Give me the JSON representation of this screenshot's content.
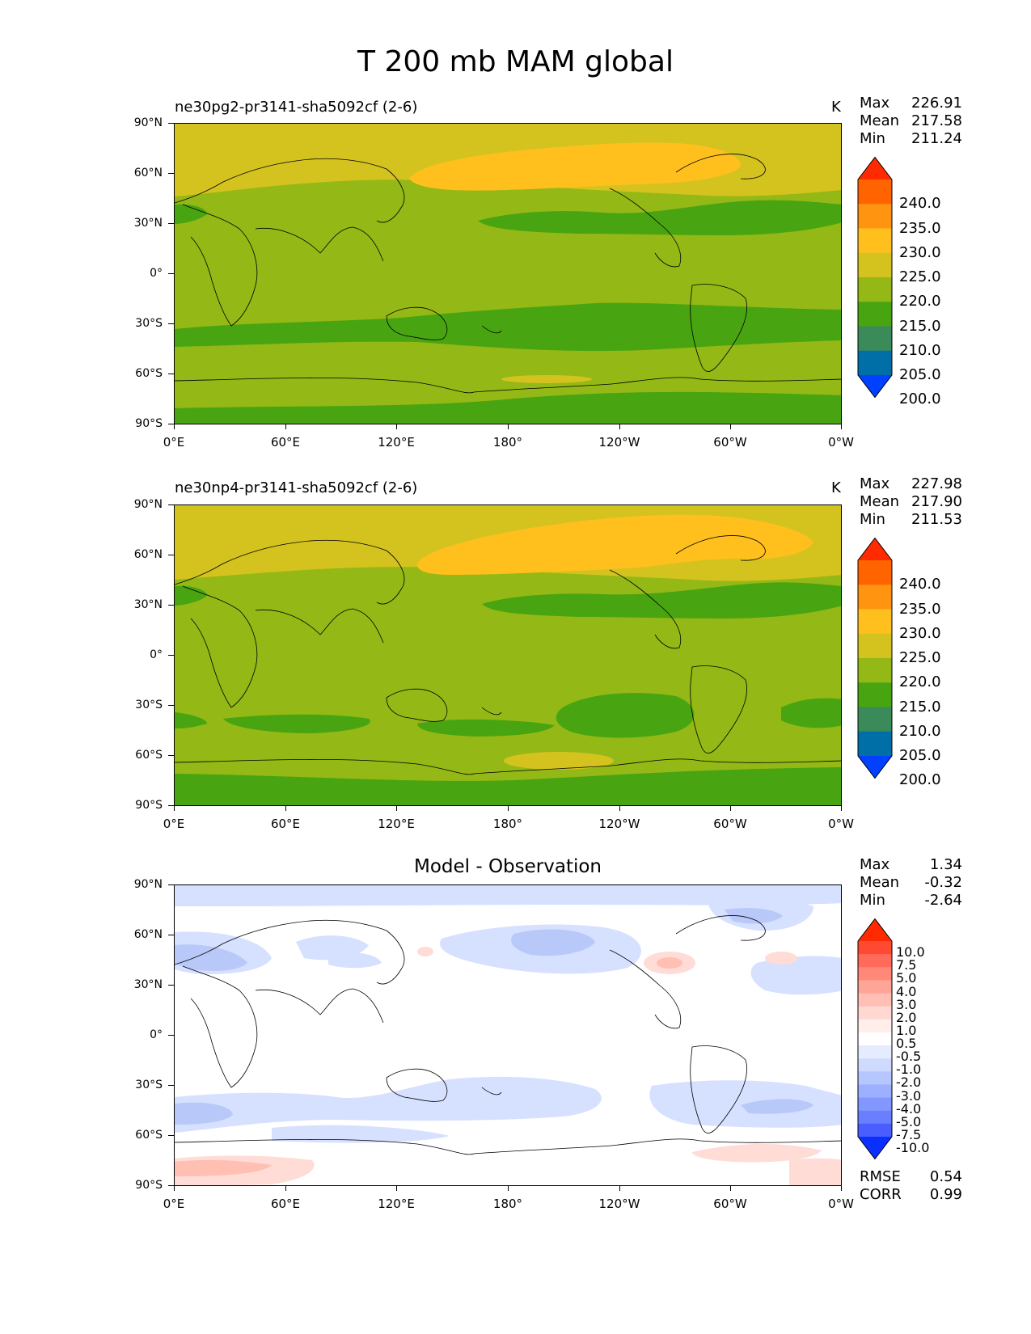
{
  "title": "T 200 mb MAM global",
  "lat_labels": [
    "90°N",
    "60°N",
    "30°N",
    "0°",
    "30°S",
    "60°S",
    "90°S"
  ],
  "lon_labels": [
    "0°E",
    "60°E",
    "120°E",
    "180°",
    "120°W",
    "60°W",
    "0°W"
  ],
  "panels": [
    {
      "title": "ne30pg2-pr3141-sha5092cf (2-6)",
      "units": "K",
      "stats": {
        "max_label": "Max",
        "max": "226.91",
        "mean_label": "Mean",
        "mean": "217.58",
        "min_label": "Min",
        "min": "211.24"
      },
      "colorbar": {
        "labels": [
          "240.0",
          "235.0",
          "230.0",
          "225.0",
          "220.0",
          "215.0",
          "210.0",
          "205.0",
          "200.0"
        ],
        "colors": [
          "#ff2a00",
          "#ff6400",
          "#ff9410",
          "#ffc01e",
          "#d4c31f",
          "#94b815",
          "#48a511",
          "#3a8a5a",
          "#006fa8",
          "#0040ff"
        ]
      }
    },
    {
      "title": "ne30np4-pr3141-sha5092cf (2-6)",
      "units": "K",
      "stats": {
        "max_label": "Max",
        "max": "227.98",
        "mean_label": "Mean",
        "mean": "217.90",
        "min_label": "Min",
        "min": "211.53"
      },
      "colorbar": {
        "labels": [
          "240.0",
          "235.0",
          "230.0",
          "225.0",
          "220.0",
          "215.0",
          "210.0",
          "205.0",
          "200.0"
        ],
        "colors": [
          "#ff2a00",
          "#ff6400",
          "#ff9410",
          "#ffc01e",
          "#d4c31f",
          "#94b815",
          "#48a511",
          "#3a8a5a",
          "#006fa8",
          "#0040ff"
        ]
      }
    },
    {
      "title": "Model - Observation",
      "stats": {
        "max_label": "Max",
        "max": "1.34",
        "mean_label": "Mean",
        "mean": "-0.32",
        "min_label": "Min",
        "min": "-2.64"
      },
      "colorbar": {
        "labels": [
          "10.0",
          "7.5",
          "5.0",
          "4.0",
          "3.0",
          "2.0",
          "1.0",
          "0.5",
          "-0.5",
          "-1.0",
          "-2.0",
          "-3.0",
          "-4.0",
          "-5.0",
          "-7.5",
          "-10.0"
        ],
        "colors": [
          "#ff2a00",
          "#ff4a33",
          "#ff6a5a",
          "#ff8878",
          "#ffa597",
          "#ffbfb5",
          "#ffd8d2",
          "#ffeeea",
          "#ffffff",
          "#e6ecff",
          "#cfdaff",
          "#b6c6ff",
          "#9cb0ff",
          "#8298ff",
          "#6a7fff",
          "#4a5eff",
          "#0a30ff"
        ]
      },
      "rmse_label": "RMSE",
      "rmse": "0.54",
      "corr_label": "CORR",
      "corr": "0.99"
    }
  ],
  "colors": {
    "field_base": "#94b815",
    "field_warm": "#d4c31f",
    "field_warmer": "#ffc01e",
    "field_cool": "#48a511",
    "diff_neg": "#d6e0ff",
    "diff_neg2": "#b8c8f8",
    "diff_pos": "#ffdcd6",
    "diff_pos2": "#ffbfb3"
  }
}
